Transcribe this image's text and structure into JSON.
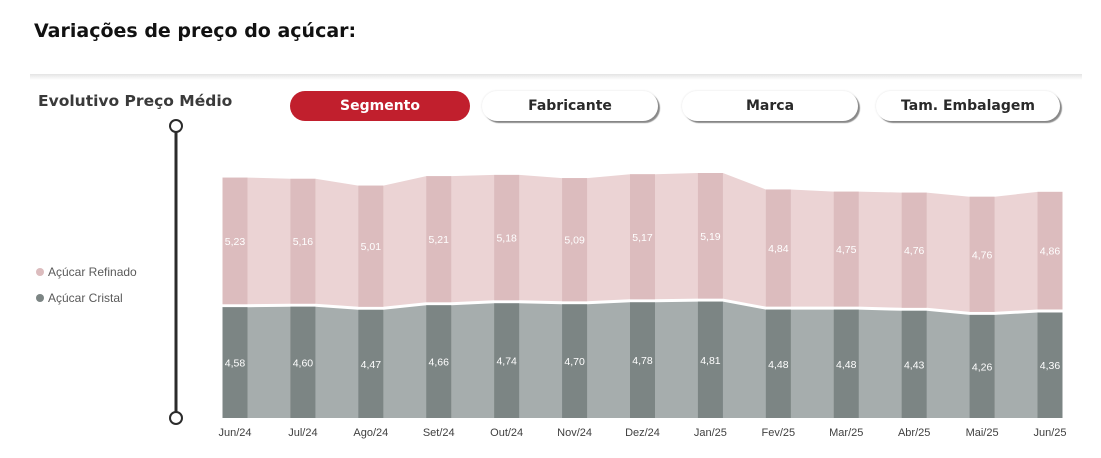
{
  "heading": "Variações de preço do açúcar:",
  "chart_title": "Evolutivo Preço Médio",
  "buttons": {
    "segmento": "Segmento",
    "fabricante": "Fabricante",
    "marca": "Marca",
    "embalagem": "Tam. Embalagem"
  },
  "colors": {
    "accent": "#c11f2d",
    "refinado_bar": "#dcbcbe",
    "refinado_area": "#ebd3d4",
    "cristal_bar": "#7c8584",
    "cristal_area": "#a6adad"
  },
  "chart_data": {
    "type": "bar",
    "stacked": true,
    "title": "Evolutivo Preço Médio",
    "categories": [
      "Jun/24",
      "Jul/24",
      "Ago/24",
      "Set/24",
      "Out/24",
      "Nov/24",
      "Dez/24",
      "Jan/25",
      "Fev/25",
      "Mar/25",
      "Abr/25",
      "Mai/25",
      "Jun/25"
    ],
    "series": [
      {
        "name": "Açúcar Refinado",
        "values": [
          5.23,
          5.16,
          5.01,
          5.21,
          5.18,
          5.09,
          5.17,
          5.19,
          4.84,
          4.75,
          4.76,
          4.76,
          4.86
        ],
        "labels": [
          "5,23",
          "5,16",
          "5,01",
          "5,21",
          "5,18",
          "5,09",
          "5,17",
          "5,19",
          "4,84",
          "4,75",
          "4,76",
          "4,76",
          "4,86"
        ]
      },
      {
        "name": "Açúcar Cristal",
        "values": [
          4.58,
          4.6,
          4.47,
          4.66,
          4.74,
          4.7,
          4.78,
          4.81,
          4.48,
          4.48,
          4.43,
          4.26,
          4.36
        ],
        "labels": [
          "4,58",
          "4,60",
          "4,47",
          "4,66",
          "4,74",
          "4,70",
          "4,78",
          "4,81",
          "4,48",
          "4,48",
          "4,43",
          "4,26",
          "4,36"
        ]
      }
    ],
    "legend_position": "left",
    "grid": false
  }
}
